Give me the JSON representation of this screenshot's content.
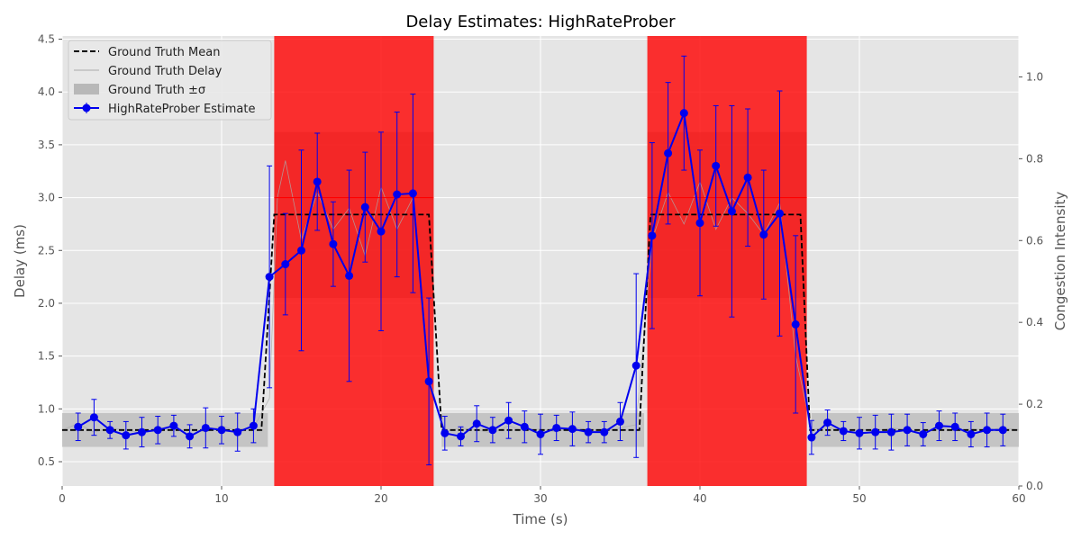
{
  "chart_data": {
    "type": "line",
    "title": "Delay Estimates: HighRateProber",
    "xlabel": "Time (s)",
    "ylabel": "Delay (ms)",
    "ylabel_right": "Congestion Intensity",
    "xlim": [
      0,
      60
    ],
    "ylim": [
      0.27,
      4.53
    ],
    "ylim_right": [
      0,
      1.1
    ],
    "x_ticks": [
      "0",
      "10",
      "20",
      "30",
      "40",
      "50",
      "60"
    ],
    "y_ticks": [
      "0.5",
      "1.0",
      "1.5",
      "2.0",
      "2.5",
      "3.0",
      "3.5",
      "4.0",
      "4.5"
    ],
    "y_right_ticks": [
      "0.0",
      "0.2",
      "0.4",
      "0.6",
      "0.8",
      "1.0"
    ],
    "grid": true,
    "legend_position": "top-left",
    "legend": [
      "Ground Truth Mean",
      "Ground Truth Delay",
      "Ground Truth ±σ",
      "HighRateProber Estimate"
    ],
    "colors": {
      "background": "#e5e5e5",
      "estimate": "#0000ee",
      "congestion": "#ff0000",
      "truth_mean": "#000000",
      "truth_delay": "#aaaaaa",
      "truth_band": "#b8b8b8",
      "grid": "#ffffff",
      "text": "#555555"
    },
    "congestion_periods": [
      {
        "start": 13.3,
        "end": 23.3,
        "intensity": 1.0
      },
      {
        "start": 36.7,
        "end": 46.7,
        "intensity": 1.0
      }
    ],
    "ground_truth_mean": {
      "x": [
        0,
        12.5,
        13.3,
        23.0,
        23.8,
        36.2,
        36.9,
        46.3,
        46.9,
        60
      ],
      "y": [
        0.8,
        0.8,
        2.84,
        2.84,
        0.8,
        0.8,
        2.84,
        2.84,
        0.8,
        0.8
      ]
    },
    "ground_truth_sigma": [
      {
        "x0": 0,
        "x1": 12.9,
        "lower": 0.64,
        "upper": 0.96
      },
      {
        "x0": 13.3,
        "x1": 23.3,
        "lower": 2.05,
        "upper": 3.62
      },
      {
        "x0": 23.8,
        "x1": 36.5,
        "lower": 0.64,
        "upper": 0.96
      },
      {
        "x0": 36.7,
        "x1": 46.7,
        "lower": 2.05,
        "upper": 3.62
      },
      {
        "x0": 47.0,
        "x1": 60,
        "lower": 0.64,
        "upper": 0.96
      }
    ],
    "ground_truth_delay": {
      "x": [
        0,
        1,
        2,
        3,
        4,
        5,
        6,
        7,
        8,
        9,
        10,
        11,
        12,
        13,
        13.5,
        14,
        15,
        16,
        17,
        18,
        19,
        20,
        21,
        22,
        23,
        24,
        25,
        26,
        27,
        28,
        29,
        30,
        31,
        32,
        33,
        34,
        35,
        36,
        37,
        38,
        39,
        40,
        41,
        42,
        43,
        44,
        45,
        46,
        47,
        48,
        49,
        50,
        51,
        52,
        53,
        54,
        55,
        56,
        57,
        58,
        59,
        60
      ],
      "y": [
        0.8,
        0.86,
        0.78,
        0.82,
        0.8,
        0.77,
        0.83,
        0.79,
        0.81,
        0.78,
        0.84,
        0.79,
        0.82,
        1.1,
        3.0,
        3.35,
        2.6,
        3.05,
        2.7,
        2.9,
        2.45,
        3.1,
        2.7,
        3.0,
        1.3,
        0.78,
        0.82,
        0.8,
        0.77,
        0.84,
        0.79,
        0.81,
        0.78,
        0.83,
        0.8,
        0.79,
        0.82,
        0.85,
        2.6,
        3.05,
        2.75,
        3.15,
        2.7,
        3.0,
        2.85,
        2.65,
        2.95,
        1.5,
        0.8,
        0.83,
        0.78,
        0.81,
        0.79,
        0.82,
        0.8,
        0.78,
        0.83,
        0.79,
        0.81,
        0.8,
        0.82,
        0.8
      ]
    },
    "series": [
      {
        "name": "HighRateProber Estimate",
        "x": [
          1,
          2,
          3,
          4,
          5,
          6,
          7,
          8,
          9,
          10,
          11,
          12,
          13,
          14,
          15,
          16,
          17,
          18,
          19,
          20,
          21,
          22,
          23,
          24,
          25,
          26,
          27,
          28,
          29,
          30,
          31,
          32,
          33,
          34,
          35,
          36,
          37,
          38,
          39,
          40,
          41,
          42,
          43,
          44,
          45,
          46,
          47,
          48,
          49,
          50,
          51,
          52,
          53,
          54,
          55,
          56,
          57,
          58,
          59
        ],
        "y": [
          0.83,
          0.92,
          0.8,
          0.75,
          0.78,
          0.8,
          0.84,
          0.74,
          0.82,
          0.8,
          0.78,
          0.84,
          2.25,
          2.37,
          2.5,
          3.15,
          2.56,
          2.26,
          2.91,
          2.68,
          3.03,
          3.04,
          1.26,
          0.77,
          0.74,
          0.86,
          0.8,
          0.89,
          0.83,
          0.76,
          0.82,
          0.81,
          0.78,
          0.78,
          0.88,
          1.41,
          2.64,
          3.42,
          3.8,
          2.76,
          3.3,
          2.87,
          3.19,
          2.65,
          2.85,
          1.8,
          0.73,
          0.87,
          0.79,
          0.77,
          0.78,
          0.78,
          0.8,
          0.76,
          0.84,
          0.83,
          0.76,
          0.8,
          0.8
        ],
        "err": [
          0.13,
          0.17,
          0.08,
          0.13,
          0.14,
          0.13,
          0.1,
          0.11,
          0.19,
          0.13,
          0.18,
          0.16,
          1.05,
          0.48,
          0.95,
          0.46,
          0.4,
          1.0,
          0.52,
          0.94,
          0.78,
          0.94,
          0.79,
          0.16,
          0.09,
          0.17,
          0.12,
          0.17,
          0.15,
          0.19,
          0.12,
          0.16,
          0.1,
          0.1,
          0.18,
          0.87,
          0.88,
          0.67,
          0.54,
          0.69,
          0.57,
          1.0,
          0.65,
          0.61,
          1.16,
          0.84,
          0.16,
          0.12,
          0.09,
          0.15,
          0.16,
          0.17,
          0.15,
          0.11,
          0.14,
          0.13,
          0.12,
          0.16,
          0.15
        ]
      }
    ]
  }
}
